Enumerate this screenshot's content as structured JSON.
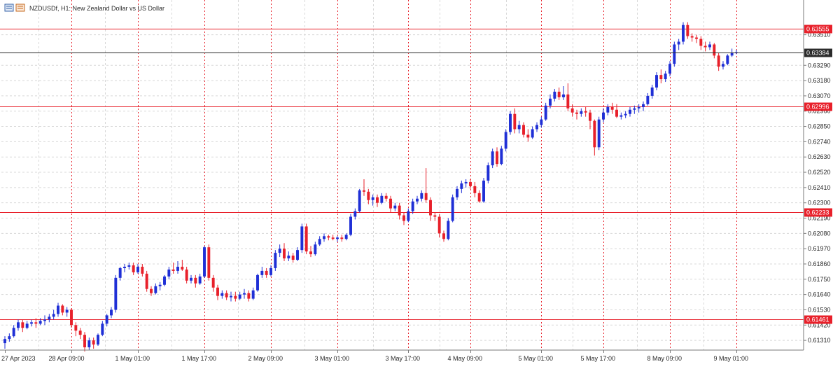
{
  "window": {
    "title": "NZDUSDf, H1:  New Zealand Dollar vs US Dollar"
  },
  "colors": {
    "bull": "#1f2fd6",
    "bear": "#e8202a",
    "hline": "#e8202a",
    "current": "#2b2b2b",
    "grid": "#d8d8d8",
    "vsep": "#e8202a"
  },
  "chart_data": {
    "type": "candlestick",
    "title": "NZDUSDf, H1:  New Zealand Dollar vs US Dollar",
    "symbol": "NZDUSDf",
    "timeframe": "H1",
    "ylim": [
      0.6124,
      0.6376
    ],
    "y_ticks": [
      "0.63510",
      "0.63290",
      "0.63180",
      "0.63070",
      "0.62960",
      "0.62850",
      "0.62740",
      "0.62630",
      "0.62520",
      "0.62410",
      "0.62300",
      "0.62190",
      "0.62080",
      "0.61970",
      "0.61860",
      "0.61750",
      "0.61640",
      "0.61530",
      "0.61420",
      "0.61310"
    ],
    "x_ticks": [
      "27 Apr 2023",
      "28 Apr 09:00",
      "1 May 01:00",
      "1 May 17:00",
      "2 May 09:00",
      "3 May 01:00",
      "3 May 17:00",
      "4 May 09:00",
      "5 May 01:00",
      "5 May 17:00",
      "8 May 09:00",
      "9 May 01:00"
    ],
    "horizontal_lines": [
      {
        "value": "0.63555"
      },
      {
        "value": "0.62996"
      },
      {
        "value": "0.62233"
      },
      {
        "value": "0.61461"
      }
    ],
    "current_price": "0.63384",
    "grid": true,
    "candles": [
      {
        "o": 0.6129,
        "h": 0.6134,
        "l": 0.6125,
        "c": 0.6132
      },
      {
        "o": 0.6132,
        "h": 0.6136,
        "l": 0.613,
        "c": 0.6134
      },
      {
        "o": 0.6134,
        "h": 0.6142,
        "l": 0.6133,
        "c": 0.614
      },
      {
        "o": 0.614,
        "h": 0.6146,
        "l": 0.6138,
        "c": 0.6144
      },
      {
        "o": 0.6144,
        "h": 0.6146,
        "l": 0.6137,
        "c": 0.614
      },
      {
        "o": 0.614,
        "h": 0.6145,
        "l": 0.6139,
        "c": 0.6143
      },
      {
        "o": 0.6143,
        "h": 0.6146,
        "l": 0.6141,
        "c": 0.6144
      },
      {
        "o": 0.6144,
        "h": 0.6147,
        "l": 0.614,
        "c": 0.6143
      },
      {
        "o": 0.6143,
        "h": 0.6147,
        "l": 0.6142,
        "c": 0.6145
      },
      {
        "o": 0.6145,
        "h": 0.6149,
        "l": 0.6142,
        "c": 0.6146
      },
      {
        "o": 0.6146,
        "h": 0.615,
        "l": 0.6144,
        "c": 0.6148
      },
      {
        "o": 0.6148,
        "h": 0.6153,
        "l": 0.6146,
        "c": 0.615
      },
      {
        "o": 0.615,
        "h": 0.6158,
        "l": 0.6148,
        "c": 0.6156
      },
      {
        "o": 0.6156,
        "h": 0.6157,
        "l": 0.6149,
        "c": 0.6151
      },
      {
        "o": 0.6151,
        "h": 0.6155,
        "l": 0.6148,
        "c": 0.6153
      },
      {
        "o": 0.6153,
        "h": 0.6154,
        "l": 0.614,
        "c": 0.6142
      },
      {
        "o": 0.6142,
        "h": 0.6144,
        "l": 0.6134,
        "c": 0.6138
      },
      {
        "o": 0.6138,
        "h": 0.614,
        "l": 0.6132,
        "c": 0.6135
      },
      {
        "o": 0.6135,
        "h": 0.6137,
        "l": 0.6123,
        "c": 0.6126
      },
      {
        "o": 0.6126,
        "h": 0.6133,
        "l": 0.6124,
        "c": 0.6131
      },
      {
        "o": 0.6131,
        "h": 0.6133,
        "l": 0.6125,
        "c": 0.6128
      },
      {
        "o": 0.6128,
        "h": 0.6136,
        "l": 0.6127,
        "c": 0.6135
      },
      {
        "o": 0.6135,
        "h": 0.6145,
        "l": 0.6134,
        "c": 0.6143
      },
      {
        "o": 0.6143,
        "h": 0.615,
        "l": 0.6141,
        "c": 0.6149
      },
      {
        "o": 0.6149,
        "h": 0.6155,
        "l": 0.6147,
        "c": 0.6153
      },
      {
        "o": 0.6153,
        "h": 0.6178,
        "l": 0.6151,
        "c": 0.6176
      },
      {
        "o": 0.6176,
        "h": 0.6184,
        "l": 0.6174,
        "c": 0.6183
      },
      {
        "o": 0.6183,
        "h": 0.6186,
        "l": 0.618,
        "c": 0.6184
      },
      {
        "o": 0.6184,
        "h": 0.6187,
        "l": 0.6182,
        "c": 0.6185
      },
      {
        "o": 0.6185,
        "h": 0.6187,
        "l": 0.6178,
        "c": 0.618
      },
      {
        "o": 0.618,
        "h": 0.6186,
        "l": 0.6179,
        "c": 0.6184
      },
      {
        "o": 0.6184,
        "h": 0.6186,
        "l": 0.6177,
        "c": 0.6179
      },
      {
        "o": 0.6179,
        "h": 0.6181,
        "l": 0.6166,
        "c": 0.6168
      },
      {
        "o": 0.6168,
        "h": 0.617,
        "l": 0.6163,
        "c": 0.6165
      },
      {
        "o": 0.6165,
        "h": 0.6172,
        "l": 0.6164,
        "c": 0.617
      },
      {
        "o": 0.617,
        "h": 0.6173,
        "l": 0.6167,
        "c": 0.6171
      },
      {
        "o": 0.6171,
        "h": 0.6178,
        "l": 0.617,
        "c": 0.6177
      },
      {
        "o": 0.6177,
        "h": 0.6184,
        "l": 0.6175,
        "c": 0.6182
      },
      {
        "o": 0.6182,
        "h": 0.6187,
        "l": 0.6179,
        "c": 0.6181
      },
      {
        "o": 0.6181,
        "h": 0.6188,
        "l": 0.6179,
        "c": 0.6184
      },
      {
        "o": 0.6184,
        "h": 0.6189,
        "l": 0.6181,
        "c": 0.6182
      },
      {
        "o": 0.6182,
        "h": 0.6184,
        "l": 0.6172,
        "c": 0.6174
      },
      {
        "o": 0.6174,
        "h": 0.6178,
        "l": 0.6172,
        "c": 0.6176
      },
      {
        "o": 0.6176,
        "h": 0.6178,
        "l": 0.6169,
        "c": 0.6172
      },
      {
        "o": 0.6172,
        "h": 0.6179,
        "l": 0.6171,
        "c": 0.6177
      },
      {
        "o": 0.6177,
        "h": 0.6199,
        "l": 0.6176,
        "c": 0.6198
      },
      {
        "o": 0.6198,
        "h": 0.62,
        "l": 0.6174,
        "c": 0.6176
      },
      {
        "o": 0.6176,
        "h": 0.6178,
        "l": 0.6166,
        "c": 0.6169
      },
      {
        "o": 0.6169,
        "h": 0.6171,
        "l": 0.616,
        "c": 0.6163
      },
      {
        "o": 0.6163,
        "h": 0.6167,
        "l": 0.6161,
        "c": 0.6165
      },
      {
        "o": 0.6165,
        "h": 0.6167,
        "l": 0.616,
        "c": 0.6162
      },
      {
        "o": 0.6162,
        "h": 0.6166,
        "l": 0.6159,
        "c": 0.6163
      },
      {
        "o": 0.6163,
        "h": 0.6166,
        "l": 0.6159,
        "c": 0.6161
      },
      {
        "o": 0.6161,
        "h": 0.6166,
        "l": 0.616,
        "c": 0.6164
      },
      {
        "o": 0.6164,
        "h": 0.6168,
        "l": 0.6161,
        "c": 0.6165
      },
      {
        "o": 0.6165,
        "h": 0.6167,
        "l": 0.6159,
        "c": 0.6161
      },
      {
        "o": 0.6161,
        "h": 0.6169,
        "l": 0.616,
        "c": 0.6167
      },
      {
        "o": 0.6167,
        "h": 0.6179,
        "l": 0.6166,
        "c": 0.6178
      },
      {
        "o": 0.6178,
        "h": 0.6184,
        "l": 0.6176,
        "c": 0.6181
      },
      {
        "o": 0.6181,
        "h": 0.6183,
        "l": 0.6176,
        "c": 0.6178
      },
      {
        "o": 0.6178,
        "h": 0.6185,
        "l": 0.6177,
        "c": 0.6183
      },
      {
        "o": 0.6183,
        "h": 0.6196,
        "l": 0.6181,
        "c": 0.6194
      },
      {
        "o": 0.6194,
        "h": 0.62,
        "l": 0.6191,
        "c": 0.6197
      },
      {
        "o": 0.6197,
        "h": 0.6201,
        "l": 0.6188,
        "c": 0.619
      },
      {
        "o": 0.619,
        "h": 0.6195,
        "l": 0.6188,
        "c": 0.6192
      },
      {
        "o": 0.6192,
        "h": 0.6194,
        "l": 0.6187,
        "c": 0.6189
      },
      {
        "o": 0.6189,
        "h": 0.6198,
        "l": 0.6188,
        "c": 0.6196
      },
      {
        "o": 0.6196,
        "h": 0.6215,
        "l": 0.6194,
        "c": 0.6213
      },
      {
        "o": 0.6213,
        "h": 0.6215,
        "l": 0.6193,
        "c": 0.6195
      },
      {
        "o": 0.6195,
        "h": 0.6199,
        "l": 0.6191,
        "c": 0.6193
      },
      {
        "o": 0.6193,
        "h": 0.6202,
        "l": 0.6192,
        "c": 0.62
      },
      {
        "o": 0.62,
        "h": 0.6206,
        "l": 0.6199,
        "c": 0.6204
      },
      {
        "o": 0.6204,
        "h": 0.6208,
        "l": 0.6202,
        "c": 0.6206
      },
      {
        "o": 0.6206,
        "h": 0.6207,
        "l": 0.6203,
        "c": 0.6205
      },
      {
        "o": 0.6205,
        "h": 0.6207,
        "l": 0.6203,
        "c": 0.6204
      },
      {
        "o": 0.6204,
        "h": 0.6206,
        "l": 0.6202,
        "c": 0.6205
      },
      {
        "o": 0.6205,
        "h": 0.6207,
        "l": 0.6202,
        "c": 0.6204
      },
      {
        "o": 0.6204,
        "h": 0.6208,
        "l": 0.6203,
        "c": 0.6207
      },
      {
        "o": 0.6207,
        "h": 0.6222,
        "l": 0.6206,
        "c": 0.622
      },
      {
        "o": 0.622,
        "h": 0.6226,
        "l": 0.6218,
        "c": 0.6224
      },
      {
        "o": 0.6224,
        "h": 0.624,
        "l": 0.6223,
        "c": 0.6239
      },
      {
        "o": 0.6239,
        "h": 0.6247,
        "l": 0.6235,
        "c": 0.6238
      },
      {
        "o": 0.6238,
        "h": 0.624,
        "l": 0.6229,
        "c": 0.6232
      },
      {
        "o": 0.6232,
        "h": 0.6236,
        "l": 0.6228,
        "c": 0.6234
      },
      {
        "o": 0.6234,
        "h": 0.6236,
        "l": 0.6227,
        "c": 0.623
      },
      {
        "o": 0.623,
        "h": 0.6237,
        "l": 0.6229,
        "c": 0.6235
      },
      {
        "o": 0.6235,
        "h": 0.6237,
        "l": 0.6231,
        "c": 0.6233
      },
      {
        "o": 0.6233,
        "h": 0.6235,
        "l": 0.6223,
        "c": 0.6226
      },
      {
        "o": 0.6226,
        "h": 0.623,
        "l": 0.6224,
        "c": 0.6228
      },
      {
        "o": 0.6228,
        "h": 0.623,
        "l": 0.6218,
        "c": 0.6221
      },
      {
        "o": 0.6221,
        "h": 0.6223,
        "l": 0.6214,
        "c": 0.6217
      },
      {
        "o": 0.6217,
        "h": 0.6226,
        "l": 0.6216,
        "c": 0.6224
      },
      {
        "o": 0.6224,
        "h": 0.6233,
        "l": 0.6222,
        "c": 0.6231
      },
      {
        "o": 0.6231,
        "h": 0.6235,
        "l": 0.6229,
        "c": 0.6233
      },
      {
        "o": 0.6233,
        "h": 0.6239,
        "l": 0.6231,
        "c": 0.6237
      },
      {
        "o": 0.6237,
        "h": 0.6255,
        "l": 0.623,
        "c": 0.6232
      },
      {
        "o": 0.6232,
        "h": 0.6234,
        "l": 0.6217,
        "c": 0.6221
      },
      {
        "o": 0.6221,
        "h": 0.6223,
        "l": 0.6217,
        "c": 0.622
      },
      {
        "o": 0.622,
        "h": 0.6222,
        "l": 0.6205,
        "c": 0.6208
      },
      {
        "o": 0.6208,
        "h": 0.621,
        "l": 0.6202,
        "c": 0.6204
      },
      {
        "o": 0.6204,
        "h": 0.6219,
        "l": 0.6203,
        "c": 0.6217
      },
      {
        "o": 0.6217,
        "h": 0.6236,
        "l": 0.6216,
        "c": 0.6234
      },
      {
        "o": 0.6234,
        "h": 0.6242,
        "l": 0.6232,
        "c": 0.624
      },
      {
        "o": 0.624,
        "h": 0.6246,
        "l": 0.6237,
        "c": 0.6244
      },
      {
        "o": 0.6244,
        "h": 0.6247,
        "l": 0.6241,
        "c": 0.6245
      },
      {
        "o": 0.6245,
        "h": 0.6247,
        "l": 0.624,
        "c": 0.6242
      },
      {
        "o": 0.6242,
        "h": 0.6245,
        "l": 0.6234,
        "c": 0.6237
      },
      {
        "o": 0.6237,
        "h": 0.6239,
        "l": 0.623,
        "c": 0.6231
      },
      {
        "o": 0.6231,
        "h": 0.6248,
        "l": 0.623,
        "c": 0.6246
      },
      {
        "o": 0.6246,
        "h": 0.6259,
        "l": 0.6244,
        "c": 0.6257
      },
      {
        "o": 0.6257,
        "h": 0.6269,
        "l": 0.6255,
        "c": 0.6267
      },
      {
        "o": 0.6267,
        "h": 0.627,
        "l": 0.6256,
        "c": 0.6258
      },
      {
        "o": 0.6258,
        "h": 0.6271,
        "l": 0.6257,
        "c": 0.6269
      },
      {
        "o": 0.6269,
        "h": 0.6283,
        "l": 0.6267,
        "c": 0.6281
      },
      {
        "o": 0.6281,
        "h": 0.6296,
        "l": 0.6279,
        "c": 0.6294
      },
      {
        "o": 0.6294,
        "h": 0.6298,
        "l": 0.628,
        "c": 0.6283
      },
      {
        "o": 0.6283,
        "h": 0.6289,
        "l": 0.628,
        "c": 0.6286
      },
      {
        "o": 0.6286,
        "h": 0.6288,
        "l": 0.6277,
        "c": 0.6279
      },
      {
        "o": 0.6279,
        "h": 0.6283,
        "l": 0.6274,
        "c": 0.6277
      },
      {
        "o": 0.6277,
        "h": 0.6285,
        "l": 0.6276,
        "c": 0.6283
      },
      {
        "o": 0.6283,
        "h": 0.6288,
        "l": 0.6281,
        "c": 0.6286
      },
      {
        "o": 0.6286,
        "h": 0.6292,
        "l": 0.6284,
        "c": 0.629
      },
      {
        "o": 0.629,
        "h": 0.6302,
        "l": 0.6289,
        "c": 0.63
      },
      {
        "o": 0.63,
        "h": 0.6308,
        "l": 0.6298,
        "c": 0.6305
      },
      {
        "o": 0.6305,
        "h": 0.6312,
        "l": 0.6303,
        "c": 0.631
      },
      {
        "o": 0.631,
        "h": 0.6313,
        "l": 0.6304,
        "c": 0.6306
      },
      {
        "o": 0.6306,
        "h": 0.6314,
        "l": 0.6304,
        "c": 0.6308
      },
      {
        "o": 0.6308,
        "h": 0.6316,
        "l": 0.6296,
        "c": 0.6298
      },
      {
        "o": 0.6298,
        "h": 0.6301,
        "l": 0.6292,
        "c": 0.6295
      },
      {
        "o": 0.6295,
        "h": 0.6297,
        "l": 0.629,
        "c": 0.6294
      },
      {
        "o": 0.6294,
        "h": 0.6298,
        "l": 0.6292,
        "c": 0.6296
      },
      {
        "o": 0.6296,
        "h": 0.6299,
        "l": 0.6292,
        "c": 0.6295
      },
      {
        "o": 0.6295,
        "h": 0.6297,
        "l": 0.6283,
        "c": 0.6289
      },
      {
        "o": 0.6289,
        "h": 0.629,
        "l": 0.6264,
        "c": 0.627
      },
      {
        "o": 0.627,
        "h": 0.6292,
        "l": 0.6268,
        "c": 0.629
      },
      {
        "o": 0.629,
        "h": 0.6298,
        "l": 0.6288,
        "c": 0.6295
      },
      {
        "o": 0.6295,
        "h": 0.6301,
        "l": 0.6293,
        "c": 0.6299
      },
      {
        "o": 0.6299,
        "h": 0.6302,
        "l": 0.6294,
        "c": 0.6297
      },
      {
        "o": 0.6297,
        "h": 0.6301,
        "l": 0.6291,
        "c": 0.6292
      },
      {
        "o": 0.6292,
        "h": 0.6295,
        "l": 0.629,
        "c": 0.6293
      },
      {
        "o": 0.6293,
        "h": 0.6296,
        "l": 0.6291,
        "c": 0.6294
      },
      {
        "o": 0.6294,
        "h": 0.6299,
        "l": 0.6292,
        "c": 0.6297
      },
      {
        "o": 0.6297,
        "h": 0.63,
        "l": 0.6294,
        "c": 0.6298
      },
      {
        "o": 0.6298,
        "h": 0.6301,
        "l": 0.6295,
        "c": 0.6299
      },
      {
        "o": 0.6299,
        "h": 0.6303,
        "l": 0.6296,
        "c": 0.6301
      },
      {
        "o": 0.6301,
        "h": 0.6309,
        "l": 0.63,
        "c": 0.6307
      },
      {
        "o": 0.6307,
        "h": 0.6315,
        "l": 0.6305,
        "c": 0.6313
      },
      {
        "o": 0.6313,
        "h": 0.6324,
        "l": 0.6311,
        "c": 0.6322
      },
      {
        "o": 0.6322,
        "h": 0.6326,
        "l": 0.6316,
        "c": 0.6319
      },
      {
        "o": 0.6319,
        "h": 0.6325,
        "l": 0.6317,
        "c": 0.6323
      },
      {
        "o": 0.6323,
        "h": 0.6332,
        "l": 0.6321,
        "c": 0.633
      },
      {
        "o": 0.633,
        "h": 0.6346,
        "l": 0.6328,
        "c": 0.6344
      },
      {
        "o": 0.6344,
        "h": 0.6348,
        "l": 0.634,
        "c": 0.6346
      },
      {
        "o": 0.6346,
        "h": 0.636,
        "l": 0.6344,
        "c": 0.6358
      },
      {
        "o": 0.6358,
        "h": 0.636,
        "l": 0.6348,
        "c": 0.635
      },
      {
        "o": 0.635,
        "h": 0.6352,
        "l": 0.6346,
        "c": 0.6349
      },
      {
        "o": 0.6349,
        "h": 0.6351,
        "l": 0.6345,
        "c": 0.6348
      },
      {
        "o": 0.6348,
        "h": 0.635,
        "l": 0.634,
        "c": 0.6343
      },
      {
        "o": 0.6343,
        "h": 0.6346,
        "l": 0.6339,
        "c": 0.6342
      },
      {
        "o": 0.6342,
        "h": 0.6346,
        "l": 0.634,
        "c": 0.6344
      },
      {
        "o": 0.6344,
        "h": 0.6345,
        "l": 0.6334,
        "c": 0.6336
      },
      {
        "o": 0.6336,
        "h": 0.6338,
        "l": 0.6325,
        "c": 0.6328
      },
      {
        "o": 0.6328,
        "h": 0.6332,
        "l": 0.6326,
        "c": 0.633
      },
      {
        "o": 0.633,
        "h": 0.6337,
        "l": 0.6329,
        "c": 0.6336
      },
      {
        "o": 0.6336,
        "h": 0.6341,
        "l": 0.6335,
        "c": 0.6338
      },
      {
        "o": 0.6338,
        "h": 0.634,
        "l": 0.6337,
        "c": 0.63384
      }
    ]
  }
}
